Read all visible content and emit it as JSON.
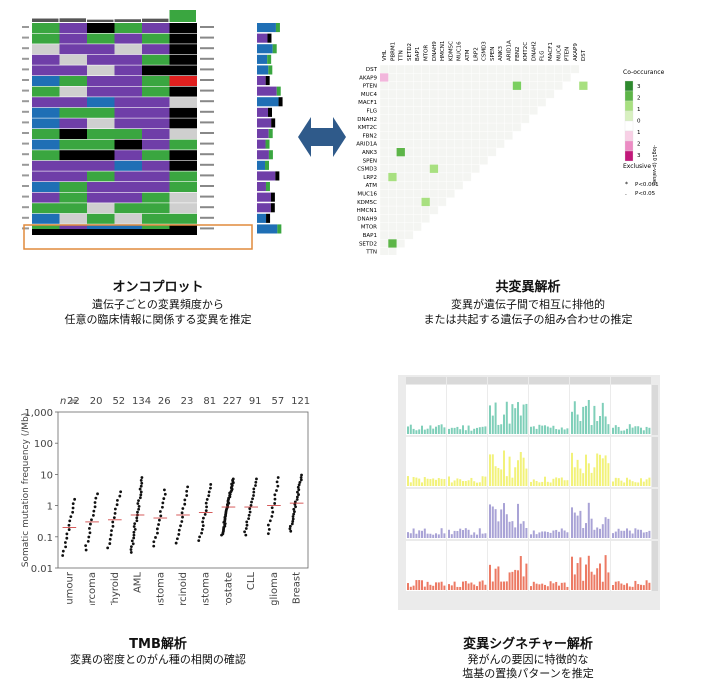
{
  "panels": {
    "oncoplot": {
      "title": "オンコプロット",
      "desc_line1": "遺伝子ごとの変異頻度から",
      "desc_line2": "任意の臨床情報に関係する変異を推定"
    },
    "cooccur": {
      "title": "共変異解析",
      "desc_line1": "変異が遺伝子間で相互に排他的",
      "desc_line2": "または共起する遺伝子の組み合わせの推定",
      "genes": [
        "DST",
        "AKAP9",
        "PTEN",
        "MUC4",
        "MACF1",
        "FLG",
        "DNAH2",
        "KMT2C",
        "FBN2",
        "ARID1A",
        "ANK3",
        "SPEN",
        "CSMD3",
        "LRP2",
        "ATM",
        "MUC16",
        "KDM5C",
        "HMCN1",
        "DNAH9",
        "MTOR",
        "BAP1",
        "SETD2",
        "TTN",
        "PBRM1",
        "VHL"
      ],
      "legend_title": "Co-occurance",
      "legend_ticks": [
        "3",
        "2",
        "1",
        "0",
        "1",
        "2",
        "3"
      ],
      "legend_axis": "-log10 (p-value)",
      "legend_bottom": "Exclusive",
      "sig1": "P<0.001",
      "sig2": "P<0.05"
    },
    "tmb": {
      "title": "TMB解析",
      "desc_line1": "変異の密度とのがん種の相関の確認",
      "n_prefix": "n =",
      "ylabel": "Somatic mutation frequency (/Mb)"
    },
    "signature": {
      "title": "変異シグネチャー解析",
      "desc_line1": "発がんの要因に特徴的な",
      "desc_line2": "塩基の置換パターンを推定"
    }
  },
  "arrow_color": "#2f5a8a",
  "chart_data": {
    "type": "scatter",
    "title": "",
    "xlabel": "",
    "ylabel": "Somatic mutation frequency (/Mb)",
    "y_scale": "log",
    "ylim": [
      0.01,
      1000
    ],
    "yticks": [
      "1,000",
      "100",
      "10",
      "1",
      "0.1",
      "0.01"
    ],
    "categories": [
      "tumour",
      "arcoma",
      "Thyroid",
      "AML",
      "astoma",
      "rcinoid",
      "astoma",
      "rostate",
      "CLL",
      "glioma",
      "Breast"
    ],
    "n": [
      "22",
      "20",
      "52",
      "134",
      "26",
      "23",
      "81",
      "227",
      "91",
      "57",
      "121"
    ],
    "medians": [
      0.2,
      0.3,
      0.35,
      0.5,
      0.4,
      0.5,
      0.6,
      0.9,
      0.9,
      1.0,
      1.2
    ]
  }
}
